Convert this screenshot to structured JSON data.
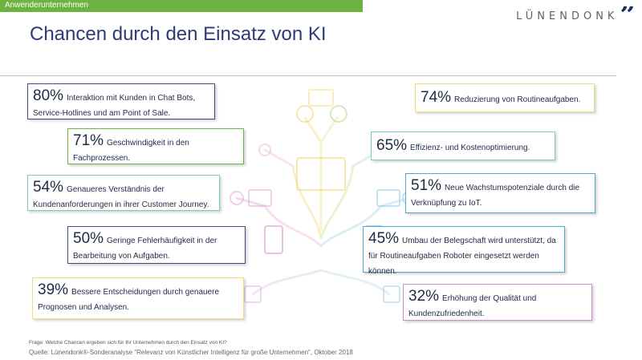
{
  "header": {
    "tag_label": "Anwenderunternehmen",
    "logo_text": "LÜNENDONK",
    "logo_mark": "”"
  },
  "page_title": "Chancen durch den Einsatz von KI",
  "colors": {
    "green": "#6db33f",
    "navy": "#2c3b78",
    "yellow": "#f2dc73",
    "teal": "#7ccbc3",
    "blue": "#4aa8d8",
    "purple": "#c58fc9"
  },
  "chart_data": {
    "type": "table",
    "title": "Chancen durch den Einsatz von KI",
    "unit": "%",
    "items": [
      {
        "value": 80,
        "pct": "80%",
        "label": "Interaktion mit Kunden in Chat Bots, Service-Hotlines und am Point of Sale."
      },
      {
        "value": 74,
        "pct": "74%",
        "label": "Reduzierung von Routineaufgaben."
      },
      {
        "value": 71,
        "pct": "71%",
        "label": "Geschwindigkeit in den Fachprozessen."
      },
      {
        "value": 65,
        "pct": "65%",
        "label": "Effizienz- und Kostenoptimierung."
      },
      {
        "value": 54,
        "pct": "54%",
        "label": "Genaueres Verständnis der Kundenanforderungen in ihrer Customer Journey."
      },
      {
        "value": 51,
        "pct": "51%",
        "label": "Neue Wachstumspotenziale durch die Verknüpfung zu IoT."
      },
      {
        "value": 50,
        "pct": "50%",
        "label": "Geringe Fehlerhäufigkeit in der Bearbeitung von Aufgaben."
      },
      {
        "value": 45,
        "pct": "45%",
        "label": "Umbau der Belegschaft wird unterstützt, da für Routineaufgaben Roboter eingesetzt werden können."
      },
      {
        "value": 39,
        "pct": "39%",
        "label": "Bessere Entscheidungen durch genauere Prognosen und Analysen."
      },
      {
        "value": 32,
        "pct": "32%",
        "label": "Erhöhung der Qualität und Kundenzufriedenheit."
      }
    ]
  },
  "footer": {
    "question": "Frage: Welche Chancen ergeben sich für Ihr Unternehmen durch den Einsatz von KI?",
    "source": "Quelle: Lünendonk®-Sonderanalyse \"Relevanz von Künstlicher Intelligenz für große Unternehmen\", Oktober 2018"
  }
}
